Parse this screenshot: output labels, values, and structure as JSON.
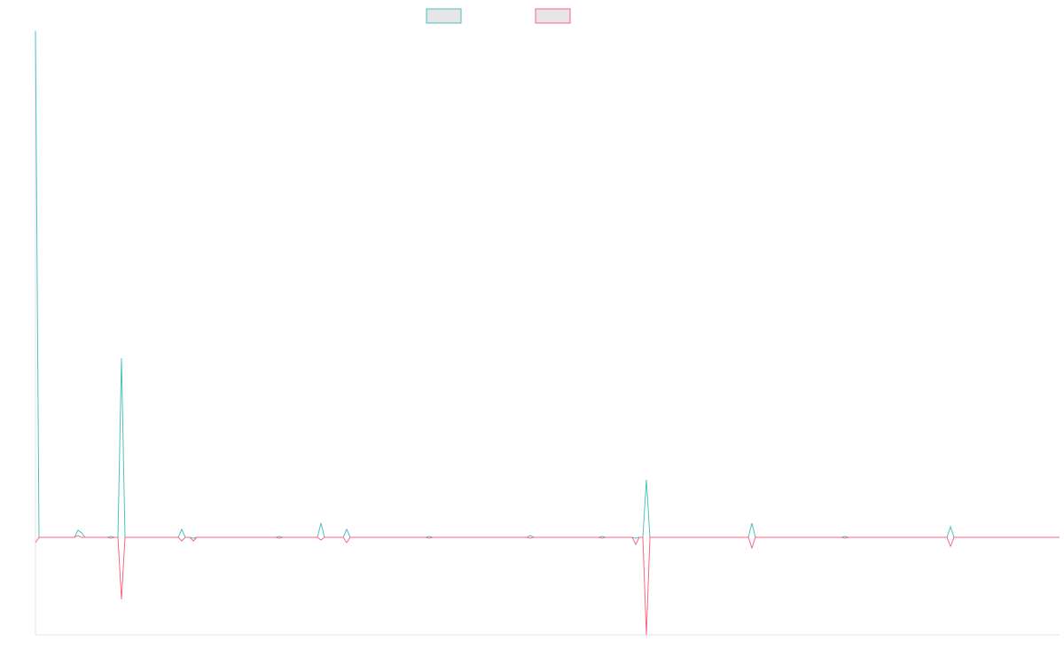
{
  "chart_data": {
    "type": "line",
    "x": [
      0,
      4,
      44,
      48,
      52,
      56,
      81,
      85,
      89,
      93,
      97,
      101,
      161,
      165,
      169,
      174,
      178,
      182,
      271,
      275,
      279,
      318,
      322,
      326,
      347,
      351,
      355,
      440,
      444,
      448,
      554,
      558,
      562,
      635,
      639,
      643,
      673,
      677,
      681,
      685,
      689,
      693,
      804,
      808,
      812,
      909,
      913,
      917,
      1028,
      1032,
      1036,
      1155
    ],
    "xlim": [
      0,
      1155
    ],
    "ylim": [
      -110,
      571
    ],
    "grid": false,
    "legend": "top",
    "series": [
      {
        "color": "#4bc0c0",
        "values": [
          571,
          0,
          0,
          8,
          5,
          0,
          0,
          1,
          0,
          0,
          202,
          0,
          0,
          9,
          0,
          0,
          -1,
          0,
          0,
          1,
          0,
          0,
          16,
          0,
          0,
          9,
          0,
          0,
          1,
          0,
          0,
          2,
          0,
          0,
          1,
          0,
          0,
          -1,
          0,
          0,
          65,
          0,
          0,
          16,
          0,
          0,
          1,
          0,
          0,
          12,
          0,
          0
        ]
      },
      {
        "color": "#ff6384",
        "values": [
          -6,
          0,
          0,
          2,
          0,
          0,
          0,
          -1,
          0,
          0,
          -70,
          0,
          0,
          -4,
          0,
          0,
          -4,
          0,
          0,
          -1,
          0,
          0,
          -3,
          0,
          0,
          -6,
          0,
          0,
          -1,
          0,
          0,
          -1,
          0,
          0,
          -1,
          0,
          0,
          -8,
          0,
          0,
          -110,
          0,
          0,
          -12,
          0,
          0,
          -1,
          0,
          0,
          -10,
          0,
          0
        ]
      }
    ]
  }
}
